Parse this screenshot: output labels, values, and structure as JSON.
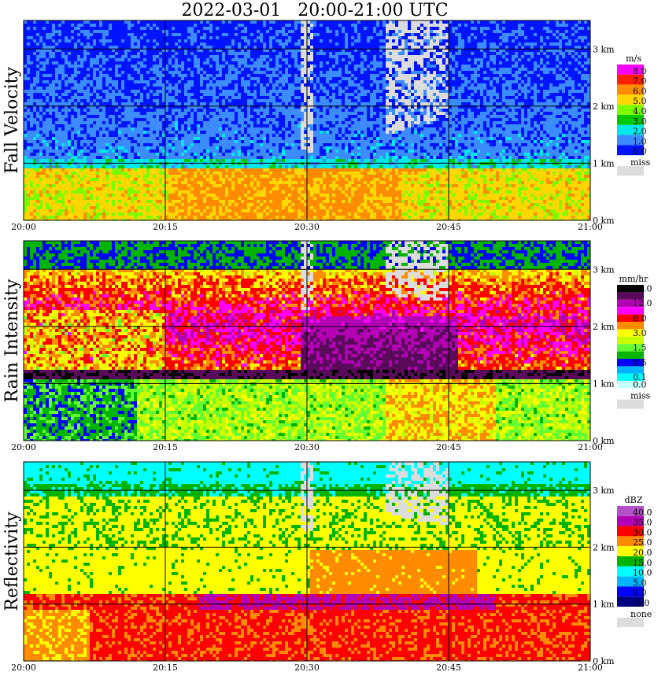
{
  "title": "2022-03-01   20:00-21:00 UTC",
  "colors": {
    "grid": "#000000",
    "missing": "#dcdcdc"
  },
  "chart_data": [
    {
      "type": "heatmap",
      "ylabel": "Fall Velocity",
      "x_range": [
        "20:00",
        "21:00"
      ],
      "x_ticks": [
        "20:00",
        "20:15",
        "20:30",
        "20:45",
        "21:00"
      ],
      "y_range_km": [
        0,
        3.5
      ],
      "y_ticks": [
        "0 km",
        "1 km",
        "2 km",
        "3 km"
      ],
      "grid": true,
      "legend": {
        "placement": "right",
        "unit": "m/s",
        "levels": [
          {
            "label": "8.0",
            "color": "#ff00ff"
          },
          {
            "label": "7.0",
            "color": "#ff2000"
          },
          {
            "label": "6.0",
            "color": "#ff8c00"
          },
          {
            "label": "5.0",
            "color": "#ffd700"
          },
          {
            "label": "4.0",
            "color": "#7cfc00"
          },
          {
            "label": "3.0",
            "color": "#00c800"
          },
          {
            "label": "2.0",
            "color": "#00e8e8"
          },
          {
            "label": "1.0",
            "color": "#3c8cff"
          },
          {
            "label": "0.0",
            "color": "#0014ff"
          }
        ],
        "missing_label": "miss"
      }
    },
    {
      "type": "heatmap",
      "ylabel": "Rain Intensity",
      "x_range": [
        "20:00",
        "21:00"
      ],
      "x_ticks": [
        "20:00",
        "20:15",
        "20:30",
        "20:45",
        "21:00"
      ],
      "y_range_km": [
        0,
        3.5
      ],
      "y_ticks": [
        "0 km",
        "1 km",
        "2 km",
        "3 km"
      ],
      "grid": true,
      "legend": {
        "placement": "right",
        "unit": "mm/hr",
        "levels": [
          {
            "label": "48.0",
            "color": "#000000"
          },
          {
            "label": "",
            "color": "#5a0a5a"
          },
          {
            "label": "12.0",
            "color": "#b400b4"
          },
          {
            "label": "",
            "color": "#ff00ff"
          },
          {
            "label": "6.0",
            "color": "#ff0000"
          },
          {
            "label": "",
            "color": "#ff8c00"
          },
          {
            "label": "3.0",
            "color": "#ffff00"
          },
          {
            "label": "",
            "color": "#c8ff00"
          },
          {
            "label": "1.5",
            "color": "#64ff32"
          },
          {
            "label": "",
            "color": "#00b400"
          },
          {
            "label": "0.5",
            "color": "#0000ff"
          },
          {
            "label": "",
            "color": "#00b4ff"
          },
          {
            "label": "0.1",
            "color": "#00ffff"
          },
          {
            "label": "0.0",
            "color": "#c8ffff"
          }
        ],
        "missing_label": "miss"
      }
    },
    {
      "type": "heatmap",
      "ylabel": "Reflectivity",
      "x_range": [
        "20:00",
        "21:00"
      ],
      "x_ticks": [
        "20:00",
        "20:15",
        "20:30",
        "20:45",
        "21:00"
      ],
      "y_range_km": [
        0,
        3.5
      ],
      "y_ticks": [
        "0 km",
        "1 km",
        "2 km",
        "3 km"
      ],
      "grid": true,
      "legend": {
        "placement": "right",
        "unit": "dBZ",
        "levels": [
          {
            "label": "40.0",
            "color": "#b450c8"
          },
          {
            "label": "35.0",
            "color": "#b400b4"
          },
          {
            "label": "30.0",
            "color": "#ff0000"
          },
          {
            "label": "25.0",
            "color": "#ff8c00"
          },
          {
            "label": "20.0",
            "color": "#ffff00"
          },
          {
            "label": "15.0",
            "color": "#00b400"
          },
          {
            "label": "10.0",
            "color": "#00ffff"
          },
          {
            "label": "5.0",
            "color": "#00b4ff"
          },
          {
            "label": "0.0",
            "color": "#0000ff"
          },
          {
            "label": "-5.0",
            "color": "#000080"
          }
        ],
        "missing_label": "none"
      }
    }
  ]
}
